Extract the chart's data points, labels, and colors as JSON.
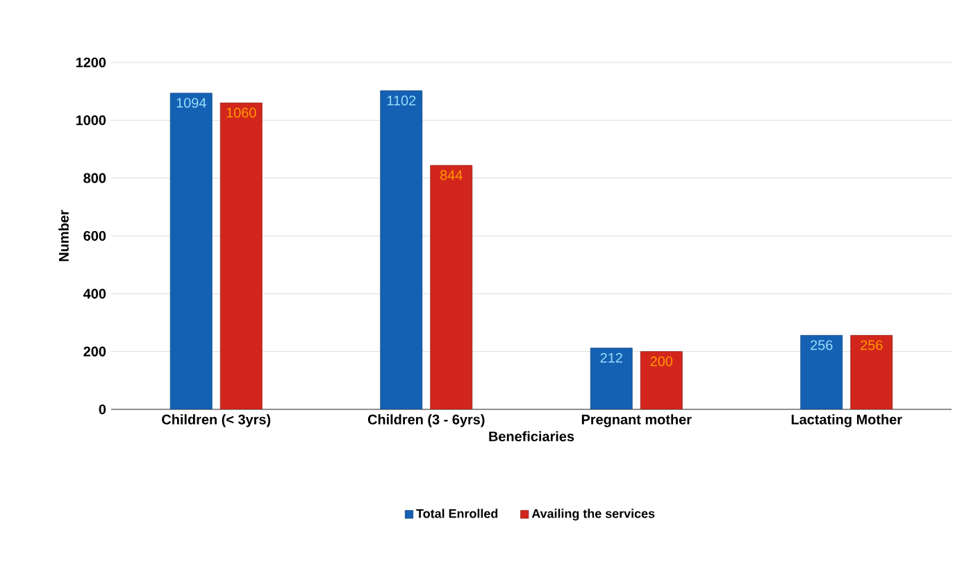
{
  "chart_data": {
    "type": "bar",
    "xlabel": "Beneficiaries",
    "ylabel": "Number",
    "categories": [
      "Children (< 3yrs)",
      "Children (3 - 6yrs)",
      "Pregnant mother",
      "Lactating Mother"
    ],
    "series": [
      {
        "name": "Total Enrolled",
        "color": "#1461b4",
        "values": [
          1094,
          1102,
          212,
          256
        ]
      },
      {
        "name": "Availing the services",
        "color": "#d2261c",
        "values": [
          1060,
          844,
          200,
          256
        ]
      }
    ],
    "ylim": [
      0,
      1200
    ],
    "yticks": [
      0,
      200,
      400,
      600,
      800,
      1000,
      1200
    ],
    "grid": "y",
    "legend": "bottom",
    "data_labels": true
  }
}
